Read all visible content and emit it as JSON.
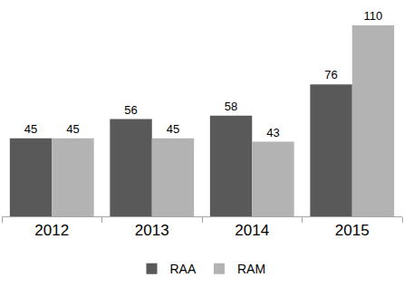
{
  "chart_data": {
    "type": "bar",
    "categories": [
      "2012",
      "2013",
      "2014",
      "2015"
    ],
    "series": [
      {
        "name": "RAA",
        "color": "#595959",
        "values": [
          45,
          56,
          58,
          76
        ]
      },
      {
        "name": "RAM",
        "color": "#b3b3b3",
        "values": [
          45,
          45,
          43,
          110
        ]
      }
    ],
    "ylim": [
      0,
      110
    ],
    "grid": false,
    "legend": "bottom",
    "data_labels": true,
    "tick_labels": "x"
  }
}
